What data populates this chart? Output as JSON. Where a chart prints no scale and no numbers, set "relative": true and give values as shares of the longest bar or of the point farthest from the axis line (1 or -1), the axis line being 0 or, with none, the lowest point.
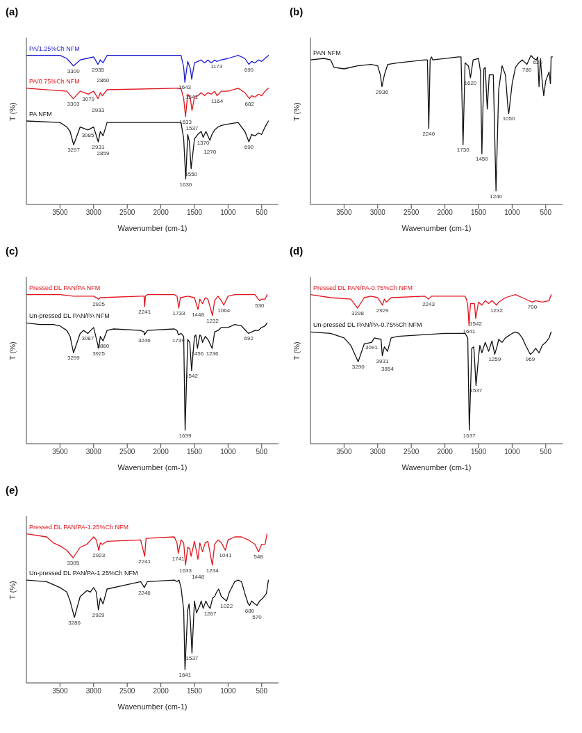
{
  "chart_data": [
    {
      "type": "line",
      "title": "(a)",
      "xlabel": "Wavenumber (cm-1)",
      "ylabel": "T (%)",
      "relative": true,
      "xlim": [
        4000,
        250
      ],
      "xticks": [
        3500,
        3000,
        2500,
        2000,
        1500,
        1000,
        500
      ],
      "series": [
        {
          "name": "PA/1.25%Ch NFM",
          "color": "#1a1ad6",
          "x": [
            4000,
            3500,
            3400,
            3300,
            3200,
            3100,
            3000,
            2935,
            2900,
            2860,
            2800,
            2000,
            1700,
            1660,
            1643,
            1600,
            1560,
            1541,
            1500,
            1450,
            1400,
            1350,
            1300,
            1250,
            1200,
            1173,
            1100,
            1000,
            850,
            750,
            690,
            650,
            600,
            550,
            500,
            450,
            400
          ],
          "values": [
            1.0,
            1.0,
            0.98,
            0.93,
            0.97,
            0.98,
            0.99,
            0.94,
            0.97,
            0.95,
            1.0,
            1.0,
            1.0,
            0.92,
            0.82,
            0.96,
            0.91,
            0.84,
            0.95,
            0.96,
            0.97,
            0.95,
            0.97,
            0.95,
            0.97,
            0.96,
            0.97,
            0.98,
            1.0,
            0.98,
            0.94,
            0.96,
            0.95,
            0.97,
            0.96,
            0.98,
            1.0
          ]
        },
        {
          "name": "PA/0.75%Ch NFM",
          "color": "#e3141c",
          "x": [
            4000,
            3400,
            3303,
            3200,
            3079,
            3000,
            2933,
            2900,
            2870,
            2800,
            1700,
            1660,
            1633,
            1600,
            1560,
            1537,
            1500,
            1450,
            1400,
            1350,
            1300,
            1250,
            1200,
            1164,
            1100,
            1000,
            850,
            750,
            682,
            650,
            600,
            550,
            500,
            450,
            400
          ],
          "values": [
            0.78,
            0.76,
            0.71,
            0.76,
            0.74,
            0.76,
            0.71,
            0.75,
            0.73,
            0.77,
            0.78,
            0.71,
            0.59,
            0.74,
            0.71,
            0.63,
            0.72,
            0.73,
            0.75,
            0.73,
            0.75,
            0.74,
            0.76,
            0.73,
            0.76,
            0.76,
            0.78,
            0.75,
            0.71,
            0.73,
            0.72,
            0.74,
            0.73,
            0.76,
            0.78
          ]
        },
        {
          "name": "PA NFM",
          "color": "#111111",
          "x": [
            4000,
            3500,
            3400,
            3350,
            3297,
            3200,
            3085,
            3000,
            2931,
            2900,
            2859,
            2800,
            2500,
            1700,
            1660,
            1630,
            1600,
            1575,
            1550,
            1500,
            1450,
            1400,
            1370,
            1330,
            1270,
            1240,
            1200,
            1150,
            1100,
            1000,
            850,
            750,
            690,
            650,
            600,
            550,
            500,
            450,
            400
          ],
          "values": [
            0.56,
            0.55,
            0.52,
            0.49,
            0.4,
            0.52,
            0.5,
            0.52,
            0.42,
            0.49,
            0.46,
            0.55,
            0.55,
            0.55,
            0.44,
            0.17,
            0.47,
            0.42,
            0.24,
            0.44,
            0.47,
            0.49,
            0.45,
            0.49,
            0.43,
            0.47,
            0.5,
            0.52,
            0.53,
            0.54,
            0.55,
            0.49,
            0.42,
            0.47,
            0.46,
            0.48,
            0.47,
            0.52,
            0.56
          ]
        }
      ],
      "annotations": [
        {
          "text": "3300",
          "x": 3300,
          "y": 0.93
        },
        {
          "text": "2935",
          "x": 2935,
          "y": 0.94
        },
        {
          "text": "2860",
          "x": 2860,
          "y": 0.95
        },
        {
          "text": "1643",
          "x": 1643,
          "y": 0.82
        },
        {
          "text": "1541",
          "x": 1541,
          "y": 0.84
        },
        {
          "text": "1173",
          "x": 1173,
          "y": 0.96
        },
        {
          "text": "690",
          "x": 690,
          "y": 0.94
        },
        {
          "text": "3303",
          "x": 3303,
          "y": 0.71
        },
        {
          "text": "3079",
          "x": 3079,
          "y": 0.74
        },
        {
          "text": "2933",
          "x": 2933,
          "y": 0.71
        },
        {
          "text": "1633",
          "x": 1633,
          "y": 0.59
        },
        {
          "text": "1537",
          "x": 1537,
          "y": 0.63
        },
        {
          "text": "1164",
          "x": 1164,
          "y": 0.73
        },
        {
          "text": "682",
          "x": 682,
          "y": 0.71
        },
        {
          "text": "3297",
          "x": 3297,
          "y": 0.4
        },
        {
          "text": "3085",
          "x": 3085,
          "y": 0.5
        },
        {
          "text": "2931",
          "x": 2931,
          "y": 0.42
        },
        {
          "text": "2859",
          "x": 2859,
          "y": 0.46
        },
        {
          "text": "1630",
          "x": 1630,
          "y": 0.17
        },
        {
          "text": "1550",
          "x": 1550,
          "y": 0.24
        },
        {
          "text": "1370",
          "x": 1370,
          "y": 0.45
        },
        {
          "text": "1270",
          "x": 1270,
          "y": 0.43
        },
        {
          "text": "690",
          "x": 690,
          "y": 0.42
        }
      ]
    },
    {
      "type": "line",
      "title": "(b)",
      "xlabel": "Wavenumber (cm-1)",
      "ylabel": "T (%)",
      "relative": true,
      "xlim": [
        4000,
        250
      ],
      "xticks": [
        3500,
        3000,
        2500,
        2000,
        1500,
        1000,
        500
      ],
      "series": [
        {
          "name": "PAN NFM",
          "color": "#111111",
          "x": [
            4000,
            3800,
            3700,
            3650,
            3500,
            3300,
            3100,
            3000,
            2960,
            2936,
            2900,
            2850,
            2700,
            2300,
            2260,
            2240,
            2220,
            2200,
            2180,
            1800,
            1760,
            1730,
            1700,
            1650,
            1620,
            1580,
            1500,
            1470,
            1450,
            1420,
            1400,
            1370,
            1340,
            1280,
            1240,
            1200,
            1150,
            1100,
            1060,
            1050,
            1000,
            950,
            900,
            850,
            780,
            720,
            680,
            640,
            620,
            600,
            580,
            550,
            530,
            500,
            450,
            430,
            420,
            400
          ],
          "values": [
            0.97,
            0.98,
            0.97,
            0.92,
            0.91,
            0.93,
            0.94,
            0.93,
            0.87,
            0.79,
            0.87,
            0.94,
            0.95,
            0.97,
            0.97,
            0.51,
            0.97,
            0.99,
            0.97,
            0.99,
            0.99,
            0.4,
            0.95,
            0.93,
            0.85,
            0.97,
            0.98,
            0.89,
            0.34,
            0.91,
            0.92,
            0.64,
            0.87,
            0.87,
            0.09,
            0.77,
            0.93,
            0.87,
            0.64,
            0.61,
            0.81,
            0.92,
            0.95,
            0.97,
            0.94,
            1.0,
            0.98,
            0.97,
            0.99,
            0.79,
            0.98,
            0.81,
            0.73,
            0.83,
            0.89,
            0.81,
            0.99,
            0.99
          ]
        }
      ],
      "annotations": [
        {
          "text": "2936",
          "x": 2936,
          "y": 0.79
        },
        {
          "text": "2240",
          "x": 2240,
          "y": 0.51
        },
        {
          "text": "1730",
          "x": 1730,
          "y": 0.4
        },
        {
          "text": "1620",
          "x": 1620,
          "y": 0.85
        },
        {
          "text": "1450",
          "x": 1450,
          "y": 0.34
        },
        {
          "text": "1240",
          "x": 1240,
          "y": 0.09
        },
        {
          "text": "1050",
          "x": 1050,
          "y": 0.61
        },
        {
          "text": "780",
          "x": 780,
          "y": 0.94
        },
        {
          "text": "620",
          "x": 620,
          "y": 0.99
        }
      ]
    },
    {
      "type": "line",
      "title": "(c)",
      "xlabel": "Wavenumber (cm-1)",
      "ylabel": "T (%)",
      "relative": true,
      "xlim": [
        4000,
        250
      ],
      "xticks": [
        3500,
        3000,
        2500,
        2000,
        1500,
        1000,
        500
      ],
      "series": [
        {
          "name": "Pressed DL PAN/PA NFM",
          "color": "#e3141c",
          "x": [
            4000,
            3500,
            3300,
            3000,
            2925,
            2900,
            2300,
            2250,
            2241,
            2230,
            2200,
            1800,
            1760,
            1733,
            1710,
            1600,
            1500,
            1448,
            1420,
            1380,
            1340,
            1300,
            1232,
            1200,
            1150,
            1100,
            1064,
            1000,
            900,
            700,
            600,
            550,
            530,
            500,
            450,
            420
          ],
          "values": [
            1.0,
            1.0,
            0.99,
            0.99,
            0.97,
            0.98,
            0.99,
            0.99,
            0.92,
            0.99,
            1.0,
            1.0,
            0.99,
            0.91,
            0.98,
            0.99,
            0.98,
            0.9,
            0.97,
            0.94,
            0.98,
            0.97,
            0.86,
            0.96,
            0.99,
            0.96,
            0.93,
            0.99,
            1.0,
            1.0,
            1.0,
            0.97,
            0.96,
            0.97,
            0.97,
            1.0
          ]
        },
        {
          "name": "Un-pressed DL PAN/PA NFM",
          "color": "#111111",
          "x": [
            4000,
            3800,
            3600,
            3500,
            3400,
            3350,
            3299,
            3200,
            3150,
            3087,
            3000,
            2925,
            2900,
            2860,
            2800,
            2700,
            2300,
            2250,
            2246,
            2200,
            1800,
            1760,
            1739,
            1700,
            1660,
            1639,
            1600,
            1570,
            1542,
            1500,
            1480,
            1456,
            1420,
            1400,
            1380,
            1340,
            1300,
            1236,
            1200,
            1150,
            1100,
            1000,
            900,
            800,
            720,
            692,
            650,
            600,
            550,
            500,
            450,
            420
          ],
          "values": [
            0.81,
            0.8,
            0.8,
            0.79,
            0.76,
            0.72,
            0.61,
            0.74,
            0.76,
            0.74,
            0.78,
            0.64,
            0.72,
            0.69,
            0.76,
            0.77,
            0.76,
            0.75,
            0.73,
            0.76,
            0.77,
            0.76,
            0.73,
            0.74,
            0.72,
            0.09,
            0.7,
            0.68,
            0.49,
            0.72,
            0.73,
            0.64,
            0.73,
            0.72,
            0.68,
            0.72,
            0.7,
            0.64,
            0.75,
            0.76,
            0.78,
            0.78,
            0.8,
            0.79,
            0.75,
            0.74,
            0.75,
            0.76,
            0.76,
            0.78,
            0.79,
            0.81
          ]
        }
      ],
      "annotations": [
        {
          "text": "2925",
          "x": 2925,
          "y": 0.97
        },
        {
          "text": "2241",
          "x": 2241,
          "y": 0.92
        },
        {
          "text": "1733",
          "x": 1733,
          "y": 0.91
        },
        {
          "text": "1448",
          "x": 1448,
          "y": 0.9
        },
        {
          "text": "1232",
          "x": 1232,
          "y": 0.86
        },
        {
          "text": "1064",
          "x": 1064,
          "y": 0.93
        },
        {
          "text": "530",
          "x": 530,
          "y": 0.96
        },
        {
          "text": "3299",
          "x": 3299,
          "y": 0.61
        },
        {
          "text": "3087",
          "x": 3087,
          "y": 0.74
        },
        {
          "text": "3925",
          "x": 2925,
          "y": 0.64
        },
        {
          "text": "3860",
          "x": 2860,
          "y": 0.69
        },
        {
          "text": "3246",
          "x": 2246,
          "y": 0.73
        },
        {
          "text": "1739",
          "x": 1739,
          "y": 0.73
        },
        {
          "text": "1639",
          "x": 1639,
          "y": 0.09
        },
        {
          "text": "1542",
          "x": 1542,
          "y": 0.49
        },
        {
          "text": "1456",
          "x": 1456,
          "y": 0.64
        },
        {
          "text": "1236",
          "x": 1236,
          "y": 0.64
        },
        {
          "text": "692",
          "x": 692,
          "y": 0.74
        }
      ]
    },
    {
      "type": "line",
      "title": "(d)",
      "xlabel": "Wavenumber (cm-1)",
      "ylabel": "T (%)",
      "relative": true,
      "xlim": [
        4000,
        250
      ],
      "xticks": [
        3500,
        3000,
        2500,
        2000,
        1500,
        1000,
        500
      ],
      "series": [
        {
          "name": "Pressed DL PAN/PA-0.75%Ch NFM",
          "color": "#e3141c",
          "x": [
            4000,
            3700,
            3400,
            3298,
            3200,
            3100,
            3000,
            2929,
            2900,
            2870,
            2800,
            2300,
            2243,
            2200,
            1800,
            1700,
            1680,
            1660,
            1641,
            1620,
            1560,
            1542,
            1500,
            1450,
            1400,
            1350,
            1300,
            1232,
            1200,
            1100,
            950,
            850,
            700,
            650,
            550,
            450,
            420
          ],
          "values": [
            1.0,
            0.98,
            0.97,
            0.91,
            0.98,
            0.99,
            0.98,
            0.93,
            0.97,
            0.95,
            0.98,
            0.99,
            0.97,
            0.99,
            0.99,
            0.99,
            0.97,
            0.93,
            0.79,
            0.94,
            0.94,
            0.84,
            0.95,
            0.93,
            0.96,
            0.94,
            0.96,
            0.93,
            0.95,
            0.98,
            1.0,
            0.98,
            0.95,
            0.96,
            0.95,
            0.96,
            1.0
          ]
        },
        {
          "name": "Un-pressed DL PAN/PA-0.75%Ch NFM",
          "color": "#111111",
          "x": [
            4000,
            3700,
            3500,
            3400,
            3290,
            3200,
            3091,
            3050,
            2950,
            2931,
            2900,
            2854,
            2800,
            2700,
            2000,
            1700,
            1660,
            1637,
            1600,
            1570,
            1537,
            1500,
            1480,
            1450,
            1400,
            1350,
            1300,
            1259,
            1220,
            1200,
            1150,
            1100,
            1000,
            950,
            900,
            850,
            800,
            730,
            700,
            650,
            600,
            550,
            500,
            450,
            420
          ],
          "values": [
            0.75,
            0.74,
            0.71,
            0.66,
            0.55,
            0.67,
            0.68,
            0.71,
            0.7,
            0.59,
            0.65,
            0.62,
            0.71,
            0.72,
            0.74,
            0.74,
            0.71,
            0.09,
            0.64,
            0.65,
            0.39,
            0.58,
            0.66,
            0.61,
            0.68,
            0.62,
            0.69,
            0.6,
            0.66,
            0.7,
            0.68,
            0.71,
            0.74,
            0.75,
            0.74,
            0.71,
            0.66,
            0.6,
            0.61,
            0.64,
            0.61,
            0.66,
            0.68,
            0.71,
            0.75
          ]
        }
      ],
      "annotations": [
        {
          "text": "3298",
          "x": 3298,
          "y": 0.91
        },
        {
          "text": "2929",
          "x": 2929,
          "y": 0.93
        },
        {
          "text": "2243",
          "x": 2243,
          "y": 0.97
        },
        {
          "text": "1641",
          "x": 1641,
          "y": 0.79
        },
        {
          "text": "1542",
          "x": 1542,
          "y": 0.84
        },
        {
          "text": "1232",
          "x": 1232,
          "y": 0.93
        },
        {
          "text": "700",
          "x": 700,
          "y": 0.95
        },
        {
          "text": "3290",
          "x": 3290,
          "y": 0.55
        },
        {
          "text": "3091",
          "x": 3091,
          "y": 0.68
        },
        {
          "text": "3931",
          "x": 2931,
          "y": 0.59
        },
        {
          "text": "3854",
          "x": 2854,
          "y": 0.62
        },
        {
          "text": "1637",
          "x": 1637,
          "y": 0.09
        },
        {
          "text": "1537",
          "x": 1537,
          "y": 0.39
        },
        {
          "text": "1259",
          "x": 1259,
          "y": 0.6
        },
        {
          "text": "969",
          "x": 730,
          "y": 0.6
        }
      ]
    },
    {
      "type": "line",
      "title": "(e)",
      "xlabel": "Wavenumber (cm-1)",
      "ylabel": "T (%)",
      "relative": true,
      "xlim": [
        4000,
        250
      ],
      "xticks": [
        3500,
        3000,
        2500,
        2000,
        1500,
        1000,
        500
      ],
      "series": [
        {
          "name": "Pressed DL PAN/PA-1.25%Ch NFM",
          "color": "#e3141c",
          "x": [
            4000,
            3700,
            3600,
            3500,
            3400,
            3305,
            3200,
            3100,
            3000,
            2960,
            2923,
            2900,
            2870,
            2800,
            2300,
            2241,
            2220,
            1800,
            1760,
            1741,
            1700,
            1660,
            1633,
            1600,
            1570,
            1550,
            1500,
            1448,
            1420,
            1380,
            1340,
            1300,
            1234,
            1200,
            1150,
            1100,
            1041,
            1000,
            900,
            800,
            700,
            600,
            548,
            500,
            450,
            420
          ],
          "values": [
            1.0,
            0.98,
            0.94,
            0.92,
            0.89,
            0.84,
            0.91,
            0.93,
            0.98,
            0.96,
            0.89,
            0.94,
            0.93,
            0.95,
            0.96,
            0.85,
            0.97,
            0.98,
            0.94,
            0.87,
            0.96,
            0.94,
            0.79,
            0.91,
            0.9,
            0.85,
            0.95,
            0.83,
            0.94,
            0.88,
            0.94,
            0.95,
            0.79,
            0.93,
            0.96,
            0.94,
            0.89,
            0.96,
            0.98,
            0.98,
            0.96,
            0.93,
            0.88,
            0.93,
            0.93,
            1.0
          ]
        },
        {
          "name": "Un-pressed DL PAN/PA-1.25%Ch NFM",
          "color": "#111111",
          "x": [
            4000,
            3700,
            3500,
            3400,
            3350,
            3286,
            3200,
            3100,
            3050,
            3000,
            2960,
            2929,
            2900,
            2860,
            2800,
            2500,
            2300,
            2246,
            2200,
            1800,
            1760,
            1730,
            1700,
            1660,
            1641,
            1600,
            1580,
            1560,
            1537,
            1500,
            1470,
            1420,
            1400,
            1370,
            1330,
            1300,
            1267,
            1230,
            1200,
            1170,
            1140,
            1100,
            1022,
            980,
            900,
            850,
            800,
            750,
            700,
            680,
            650,
            600,
            570,
            530,
            480,
            430,
            400
          ],
          "values": [
            0.69,
            0.68,
            0.64,
            0.61,
            0.55,
            0.44,
            0.58,
            0.62,
            0.61,
            0.64,
            0.61,
            0.49,
            0.57,
            0.53,
            0.63,
            0.66,
            0.68,
            0.64,
            0.68,
            0.69,
            0.68,
            0.69,
            0.64,
            0.49,
            0.09,
            0.49,
            0.53,
            0.41,
            0.2,
            0.55,
            0.47,
            0.52,
            0.55,
            0.5,
            0.55,
            0.52,
            0.5,
            0.57,
            0.58,
            0.61,
            0.63,
            0.58,
            0.55,
            0.61,
            0.68,
            0.69,
            0.68,
            0.6,
            0.53,
            0.52,
            0.55,
            0.53,
            0.52,
            0.55,
            0.57,
            0.6,
            0.69
          ]
        }
      ],
      "annotations": [
        {
          "text": "3305",
          "x": 3305,
          "y": 0.84
        },
        {
          "text": "2923",
          "x": 2923,
          "y": 0.89
        },
        {
          "text": "2241",
          "x": 2241,
          "y": 0.85
        },
        {
          "text": "1741",
          "x": 1741,
          "y": 0.87
        },
        {
          "text": "1633",
          "x": 1633,
          "y": 0.79
        },
        {
          "text": "1448",
          "x": 1448,
          "y": 0.83
        },
        {
          "text": "1234",
          "x": 1234,
          "y": 0.79
        },
        {
          "text": "1041",
          "x": 1041,
          "y": 0.89
        },
        {
          "text": "548",
          "x": 548,
          "y": 0.88
        },
        {
          "text": "3286",
          "x": 3286,
          "y": 0.44
        },
        {
          "text": "2929",
          "x": 2929,
          "y": 0.49
        },
        {
          "text": "2246",
          "x": 2246,
          "y": 0.64
        },
        {
          "text": "1641",
          "x": 1641,
          "y": 0.09
        },
        {
          "text": "1537",
          "x": 1537,
          "y": 0.2
        },
        {
          "text": "1267",
          "x": 1267,
          "y": 0.5
        },
        {
          "text": "1022",
          "x": 1022,
          "y": 0.55
        },
        {
          "text": "680",
          "x": 680,
          "y": 0.52
        },
        {
          "text": "570",
          "x": 570,
          "y": 0.52
        }
      ]
    }
  ]
}
